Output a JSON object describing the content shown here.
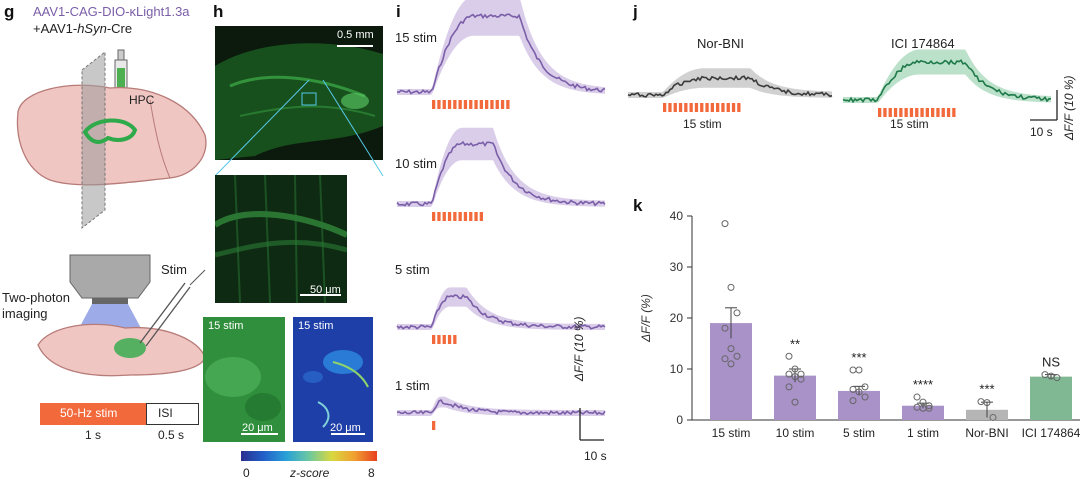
{
  "colors": {
    "purple": "#7a5ea8",
    "purple_shade": "#cbb8e0",
    "green": "#1f7a4a",
    "green_shade": "#9fd4b4",
    "gray": "#3b3b3b",
    "stim": "#f26a3c",
    "bar_purple": "#a892c8",
    "bar_gray": "#b5b5b5",
    "bar_green": "#7fb892"
  },
  "panel_g": {
    "label": "g",
    "construct_1": "AAV1-CAG-DIO-κLight1.3a",
    "construct_2_prefix": "+AAV1-",
    "construct_2_promoter": "hSyn",
    "construct_2_suffix": "-Cre",
    "hpc_label": "HPC",
    "stim_label": "Stim",
    "imaging_label_1": "Two-photon",
    "imaging_label_2": "imaging",
    "protocol_stim": "50-Hz stim",
    "protocol_isi": "ISI",
    "protocol_stim_duration": "1 s",
    "protocol_isi_duration": "0.5 s"
  },
  "panel_h": {
    "label": "h",
    "scale_top": "0.5 mm",
    "scale_mid": "50 μm",
    "left_title": "15 stim",
    "right_title": "15 stim",
    "scale_left": "20 μm",
    "scale_right": "20 μm",
    "colorbar_min": "0",
    "colorbar_max": "8",
    "colorbar_label": "z-score"
  },
  "panel_i": {
    "label": "i",
    "traces": [
      {
        "name": "15 stim",
        "pulses": 15,
        "peak": 1.0
      },
      {
        "name": "10 stim",
        "pulses": 10,
        "peak": 0.72
      },
      {
        "name": "5 stim",
        "pulses": 5,
        "peak": 0.3
      },
      {
        "name": "1 stim",
        "pulses": 1,
        "peak": 0.12
      }
    ],
    "scale_y": "ΔF/F (10 %)",
    "scale_x": "10 s"
  },
  "panel_j": {
    "label": "j",
    "left_title": "Nor-BNI",
    "right_title": "ICI 174864",
    "left_stim": "15 stim",
    "right_stim": "15 stim",
    "scale_y": "ΔF/F (10 %)",
    "scale_x": "10 s"
  },
  "panel_k": {
    "label": "k"
  },
  "chart_data": {
    "type": "bar",
    "ylabel": "ΔF/F (%)",
    "ylim": [
      0,
      40
    ],
    "yticks": [
      0,
      10,
      20,
      30,
      40
    ],
    "categories": [
      "15 stim",
      "10 stim",
      "5 stim",
      "1 stim",
      "Nor-BNI",
      "ICI 174864"
    ],
    "values": [
      19,
      8.7,
      5.7,
      2.8,
      2.0,
      8.5
    ],
    "sem": [
      3,
      1.3,
      0.9,
      0.5,
      1.5,
      0.4
    ],
    "significance": [
      "",
      "**",
      "***",
      "****",
      "***",
      "NS"
    ],
    "points": [
      [
        38.5,
        26,
        21,
        18,
        14,
        12.5,
        12,
        11
      ],
      [
        12.5,
        10,
        9,
        9,
        8.5,
        8,
        6.5,
        3.5
      ],
      [
        9.8,
        9.8,
        6.5,
        6,
        5.5,
        4.5,
        3.8
      ],
      [
        4.5,
        3.5,
        2.8,
        2.5,
        2.3,
        2.3
      ],
      [
        3.6,
        3.4,
        0.5
      ],
      [
        8.9,
        8.6,
        8.3
      ]
    ]
  }
}
